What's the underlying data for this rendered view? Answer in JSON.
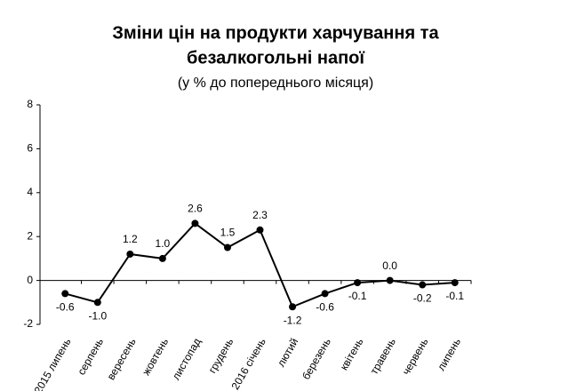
{
  "chart_data": {
    "type": "line",
    "title": [
      "Зміни цін на продукти харчування та",
      "безалкогольні напої"
    ],
    "subtitle": "(у % до попереднього місяця)",
    "categories": [
      "2015 липень",
      "серпень",
      "вересень",
      "жовтень",
      "листопад",
      "грудень",
      "2016 січень",
      "лютий",
      "березень",
      "квітень",
      "травень",
      "червень",
      "липень"
    ],
    "values": [
      -0.6,
      -1.0,
      1.2,
      1.0,
      2.6,
      1.5,
      2.3,
      -1.2,
      -0.6,
      -0.1,
      0.0,
      -0.2,
      -0.1
    ],
    "value_labels": [
      "-0.6",
      "-1.0",
      "1.2",
      "1.0",
      "2.6",
      "1.5",
      "2.3",
      "-1.2",
      "-0.6",
      "-0.1",
      "0.0",
      "-0.2",
      "-0.1"
    ],
    "color": "#000000",
    "ylim": [
      -2,
      8
    ],
    "yticks": [
      -2,
      0,
      2,
      4,
      6,
      8
    ],
    "grid": false
  }
}
